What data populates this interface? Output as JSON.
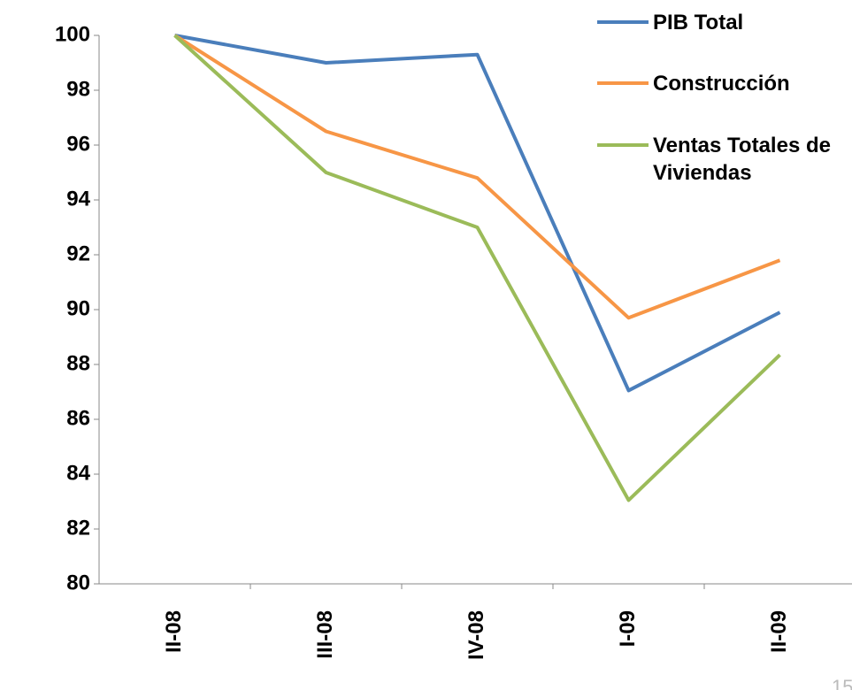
{
  "chart_data": {
    "type": "line",
    "categories": [
      "II-08",
      "III-08",
      "IV-08",
      "I-09",
      "II-09"
    ],
    "series": [
      {
        "name": "PIB Total",
        "color": "#4a7ebb",
        "values": [
          100,
          99.0,
          99.3,
          87.05,
          89.9
        ]
      },
      {
        "name": "Construcción",
        "color": "#f79646",
        "values": [
          100,
          96.5,
          94.8,
          89.7,
          91.8
        ]
      },
      {
        "name": "Ventas Totales de Viviendas",
        "color": "#9bbb59",
        "values": [
          100,
          95.0,
          93.0,
          83.05,
          88.35
        ]
      }
    ],
    "ylim": [
      80,
      100
    ],
    "yticks": [
      80,
      82,
      84,
      86,
      88,
      90,
      92,
      94,
      96,
      98,
      100
    ],
    "page_number": "15"
  }
}
